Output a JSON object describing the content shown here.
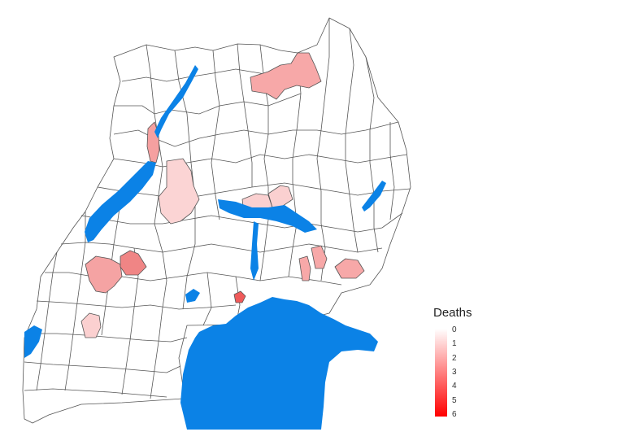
{
  "legend": {
    "title": "Deaths",
    "ticks": [
      "0",
      "1",
      "2",
      "3",
      "4",
      "5",
      "6"
    ],
    "min": 0,
    "max": 6,
    "color_low": "#ffffff",
    "color_high": "#ff0000"
  },
  "colors": {
    "water": "#0b82e6",
    "border": "#555555",
    "land": "#ffffff"
  },
  "districts_with_deaths": [
    {
      "name": "northern-district",
      "deaths": 2
    },
    {
      "name": "western-lake-albert-strip",
      "deaths": 2
    },
    {
      "name": "central-north-district",
      "deaths": 1
    },
    {
      "name": "lake-kyoga-district-west",
      "deaths": 1
    },
    {
      "name": "lake-kyoga-district-east",
      "deaths": 1
    },
    {
      "name": "western-district-a",
      "deaths": 2
    },
    {
      "name": "western-district-b",
      "deaths": 3
    },
    {
      "name": "eastern-district-a",
      "deaths": 2
    },
    {
      "name": "eastern-district-b",
      "deaths": 2
    },
    {
      "name": "eastern-district-c",
      "deaths": 2
    },
    {
      "name": "southwest-district",
      "deaths": 1
    },
    {
      "name": "kampala-district",
      "deaths": 4
    }
  ]
}
